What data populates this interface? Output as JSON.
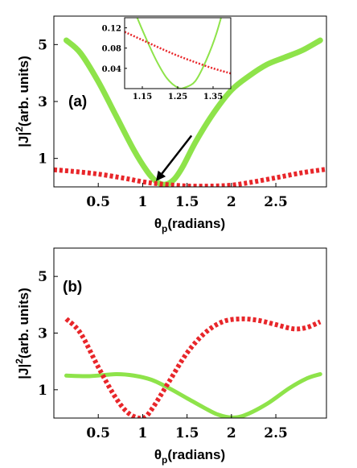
{
  "colors": {
    "green": "#8ee34a",
    "red": "#e8262a"
  },
  "chart_data": [
    {
      "type": "line",
      "panel_label": "(a)",
      "xlabel_main": "θ",
      "xlabel_sub": "p",
      "xlabel_rest": "(radians)",
      "ylabel": "|J|",
      "ylabel_sup": "2",
      "ylabel_rest": "(arb. units)",
      "xlim": [
        0,
        3.07
      ],
      "ylim": [
        0,
        6
      ],
      "xticks": [
        0.5,
        1,
        1.5,
        2,
        2.5
      ],
      "xtick_labels": [
        "0.5",
        "1",
        "1.5",
        "2",
        "2.5"
      ],
      "yticks": [
        1,
        3,
        5
      ],
      "ytick_labels": [
        "1",
        "3",
        "5"
      ],
      "series": [
        {
          "color": "green",
          "style": "solid",
          "x": [
            0.14,
            0.3,
            0.5,
            0.7,
            0.9,
            1.05,
            1.15,
            1.25,
            1.35,
            1.45,
            1.6,
            1.8,
            2.0,
            2.2,
            2.4,
            2.6,
            2.8,
            3.0
          ],
          "y": [
            5.15,
            4.7,
            3.7,
            2.5,
            1.3,
            0.55,
            0.2,
            0.08,
            0.25,
            0.7,
            1.6,
            2.6,
            3.4,
            3.9,
            4.3,
            4.55,
            4.8,
            5.15
          ]
        },
        {
          "color": "red",
          "style": "dotted",
          "x": [
            0,
            0.2,
            0.5,
            0.8,
            1.0,
            1.2,
            1.5,
            1.8,
            2.0,
            2.2,
            2.5,
            2.8,
            3.07
          ],
          "y": [
            0.6,
            0.55,
            0.45,
            0.3,
            0.18,
            0.1,
            0.03,
            0.03,
            0.06,
            0.15,
            0.32,
            0.5,
            0.62
          ]
        }
      ],
      "annotation": {
        "type": "arrow",
        "from": [
          1.55,
          1.8
        ],
        "to": [
          1.15,
          0.2
        ]
      },
      "inset": {
        "xlim": [
          1.1,
          1.4
        ],
        "ylim": [
          0,
          0.14
        ],
        "xticks": [
          1.15,
          1.25,
          1.35
        ],
        "xtick_labels": [
          "1.15",
          "1.25",
          "1.35"
        ],
        "yticks": [
          0.04,
          0.08,
          0.12
        ],
        "ytick_labels": [
          "0.04",
          "0.08",
          "0.12"
        ],
        "series": [
          {
            "color": "green",
            "style": "solid",
            "x": [
              1.1,
              1.13,
              1.16,
              1.19,
              1.22,
              1.25,
              1.27,
              1.3,
              1.33,
              1.36,
              1.4
            ],
            "y": [
              0.21,
              0.15,
              0.1,
              0.055,
              0.02,
              0.002,
              0.002,
              0.015,
              0.055,
              0.11,
              0.21
            ]
          },
          {
            "color": "red",
            "style": "dotted",
            "x": [
              1.1,
              1.15,
              1.2,
              1.25,
              1.3,
              1.35,
              1.4
            ],
            "y": [
              0.112,
              0.096,
              0.08,
              0.065,
              0.052,
              0.04,
              0.03
            ]
          }
        ]
      }
    },
    {
      "type": "line",
      "panel_label": "(b)",
      "xlabel_main": "θ",
      "xlabel_sub": "p",
      "xlabel_rest": "(radians)",
      "ylabel": "|J|",
      "ylabel_sup": "2",
      "ylabel_rest": "(arb. units)",
      "xlim": [
        0,
        3.07
      ],
      "ylim": [
        0,
        6
      ],
      "xticks": [
        0.5,
        1,
        1.5,
        2,
        2.5
      ],
      "xtick_labels": [
        "0.5",
        "1",
        "1.5",
        "2",
        "2.5"
      ],
      "yticks": [
        1,
        3,
        5
      ],
      "ytick_labels": [
        "1",
        "3",
        "5"
      ],
      "series": [
        {
          "color": "green",
          "style": "solid",
          "x": [
            0.14,
            0.4,
            0.7,
            0.9,
            1.1,
            1.3,
            1.5,
            1.7,
            1.85,
            2.0,
            2.15,
            2.4,
            2.65,
            2.85,
            3.0
          ],
          "y": [
            1.5,
            1.48,
            1.55,
            1.5,
            1.35,
            1.05,
            0.7,
            0.35,
            0.12,
            0.02,
            0.1,
            0.5,
            1.05,
            1.4,
            1.55
          ]
        },
        {
          "color": "red",
          "style": "dotted",
          "x": [
            0.14,
            0.3,
            0.5,
            0.7,
            0.85,
            1.0,
            1.1,
            1.3,
            1.5,
            1.7,
            1.9,
            2.1,
            2.3,
            2.5,
            2.7,
            2.85,
            3.0
          ],
          "y": [
            3.5,
            3.0,
            1.8,
            0.7,
            0.15,
            0.0,
            0.3,
            1.3,
            2.3,
            3.0,
            3.4,
            3.5,
            3.45,
            3.3,
            3.15,
            3.2,
            3.4
          ]
        }
      ]
    }
  ]
}
